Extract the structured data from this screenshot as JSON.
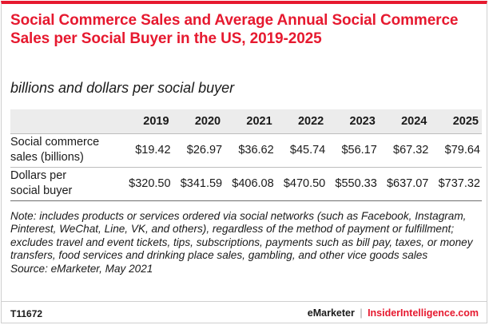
{
  "header": {
    "title": "Social Commerce Sales and Average Annual Social Commerce Sales per Social Buyer in the US, 2019-2025",
    "subtitle": "billions and dollars per social buyer"
  },
  "chart_data": {
    "type": "table",
    "title": "Social Commerce Sales and Average Annual Social Commerce Sales per Social Buyer in the US, 2019-2025",
    "subtitle": "billions and dollars per social buyer",
    "columns": [
      "2019",
      "2020",
      "2021",
      "2022",
      "2023",
      "2024",
      "2025"
    ],
    "rows": [
      {
        "label_line1": "Social commerce",
        "label_line2": "sales (billions)",
        "values": [
          "$19.42",
          "$26.97",
          "$36.62",
          "$45.74",
          "$56.17",
          "$67.32",
          "$79.64"
        ]
      },
      {
        "label_line1": "Dollars per",
        "label_line2": "social buyer",
        "values": [
          "$320.50",
          "$341.59",
          "$406.08",
          "$470.50",
          "$550.33",
          "$637.07",
          "$737.32"
        ]
      }
    ]
  },
  "notes": {
    "note": "Note: includes products or services ordered via social networks (such as Facebook, Instagram, Pinterest, WeChat, Line, VK, and others), regardless of the method of payment or fulfillment; excludes travel and event tickets, tips, subscriptions, payments such as bill pay, taxes, or money transfers, food services and drinking place sales, gambling, and other vice goods sales",
    "source": "Source: eMarketer, May 2021"
  },
  "footer": {
    "code": "T11672",
    "brand_left": "eMarketer",
    "separator": "|",
    "brand_right": "InsiderIntelligence.com"
  },
  "colors": {
    "accent": "#e6192f",
    "header_row_bg": "#ececec"
  }
}
